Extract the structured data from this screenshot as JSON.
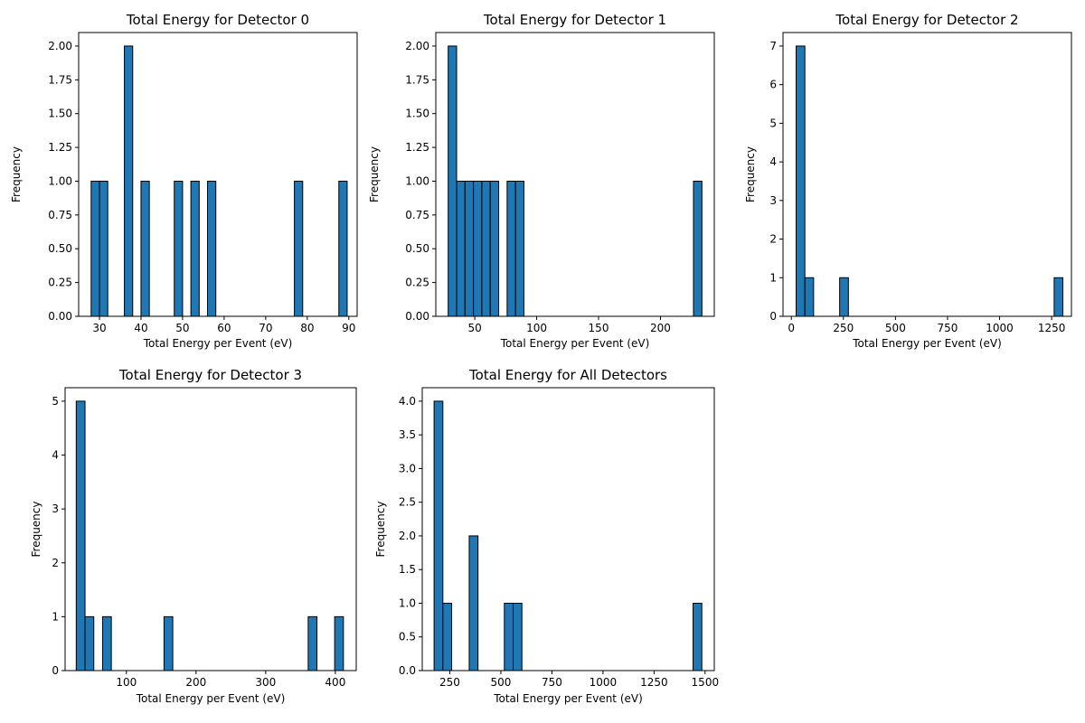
{
  "chart_data": [
    {
      "type": "bar",
      "title": "Total Energy for Detector 0",
      "xlabel": "Total Energy per Event (eV)",
      "ylabel": "Frequency",
      "xlim": [
        25.0,
        92.0
      ],
      "ylim": [
        0,
        2.1
      ],
      "xticks": [
        30,
        40,
        50,
        60,
        70,
        80,
        90
      ],
      "xtick_labels": [
        "30",
        "40",
        "50",
        "60",
        "70",
        "80",
        "90"
      ],
      "yticks": [
        0,
        0.25,
        0.5,
        0.75,
        1.0,
        1.25,
        1.5,
        1.75,
        2.0
      ],
      "ytick_labels": [
        "0.00",
        "0.25",
        "0.50",
        "0.75",
        "1.00",
        "1.25",
        "1.50",
        "1.75",
        "2.00"
      ],
      "bin_width": 2.0,
      "bars": [
        {
          "x0": 28.0,
          "count": 1
        },
        {
          "x0": 30.0,
          "count": 1
        },
        {
          "x0": 36.0,
          "count": 2
        },
        {
          "x0": 40.0,
          "count": 1
        },
        {
          "x0": 48.0,
          "count": 1
        },
        {
          "x0": 52.0,
          "count": 1
        },
        {
          "x0": 56.0,
          "count": 1
        },
        {
          "x0": 76.9,
          "count": 1
        },
        {
          "x0": 87.6,
          "count": 1
        }
      ],
      "bar_color": "#1f77b4",
      "edge_color": "#000000"
    },
    {
      "type": "bar",
      "title": "Total Energy for Detector 1",
      "xlabel": "Total Energy per Event (eV)",
      "ylabel": "Frequency",
      "xlim": [
        18.5,
        243.5
      ],
      "ylim": [
        0,
        2.1
      ],
      "xticks": [
        50,
        100,
        150,
        200
      ],
      "xtick_labels": [
        "50",
        "100",
        "150",
        "200"
      ],
      "yticks": [
        0,
        0.25,
        0.5,
        0.75,
        1.0,
        1.25,
        1.5,
        1.75,
        2.0
      ],
      "ytick_labels": [
        "0.00",
        "0.25",
        "0.50",
        "0.75",
        "1.00",
        "1.25",
        "1.50",
        "1.75",
        "2.00"
      ],
      "bin_width": 6.8,
      "bars": [
        {
          "x0": 28.5,
          "count": 2
        },
        {
          "x0": 35.3,
          "count": 1
        },
        {
          "x0": 42.1,
          "count": 1
        },
        {
          "x0": 48.9,
          "count": 1
        },
        {
          "x0": 55.7,
          "count": 1
        },
        {
          "x0": 62.5,
          "count": 1
        },
        {
          "x0": 76.1,
          "count": 1
        },
        {
          "x0": 82.9,
          "count": 1
        },
        {
          "x0": 226.7,
          "count": 1
        }
      ],
      "bar_color": "#1f77b4",
      "edge_color": "#000000"
    },
    {
      "type": "bar",
      "title": "Total Energy for Detector 2",
      "xlabel": "Total Energy per Event (eV)",
      "ylabel": "Frequency",
      "xlim": [
        -40,
        1345
      ],
      "ylim": [
        0,
        7.35
      ],
      "xticks": [
        0,
        250,
        500,
        750,
        1000,
        1250
      ],
      "xtick_labels": [
        "0",
        "250",
        "500",
        "750",
        "1000",
        "1250"
      ],
      "yticks": [
        0,
        1,
        2,
        3,
        4,
        5,
        6,
        7
      ],
      "ytick_labels": [
        "0",
        "1",
        "2",
        "3",
        "4",
        "5",
        "6",
        "7"
      ],
      "bin_width": 42.0,
      "bars": [
        {
          "x0": 23.0,
          "count": 7
        },
        {
          "x0": 65.0,
          "count": 1
        },
        {
          "x0": 232.0,
          "count": 1
        },
        {
          "x0": 1262.0,
          "count": 1
        }
      ],
      "bar_color": "#1f77b4",
      "edge_color": "#000000"
    },
    {
      "type": "bar",
      "title": "Total Energy for Detector 3",
      "xlabel": "Total Energy per Event (eV)",
      "ylabel": "Frequency",
      "xlim": [
        12.0,
        430.0
      ],
      "ylim": [
        0,
        5.25
      ],
      "xticks": [
        100,
        200,
        300,
        400
      ],
      "xtick_labels": [
        "100",
        "200",
        "300",
        "400"
      ],
      "yticks": [
        0,
        1,
        2,
        3,
        4,
        5
      ],
      "ytick_labels": [
        "0",
        "1",
        "2",
        "3",
        "4",
        "5"
      ],
      "bin_width": 12.6,
      "bars": [
        {
          "x0": 28.0,
          "count": 5
        },
        {
          "x0": 40.6,
          "count": 1
        },
        {
          "x0": 65.8,
          "count": 1
        },
        {
          "x0": 154.0,
          "count": 1
        },
        {
          "x0": 361.0,
          "count": 1
        },
        {
          "x0": 399.0,
          "count": 1
        }
      ],
      "bar_color": "#1f77b4",
      "edge_color": "#000000"
    },
    {
      "type": "bar",
      "title": "Total Energy for All Detectors",
      "xlabel": "Total Energy per Event (eV)",
      "ylabel": "Frequency",
      "xlim": [
        115,
        1545
      ],
      "ylim": [
        0,
        4.2
      ],
      "xticks": [
        250,
        500,
        750,
        1000,
        1250,
        1500
      ],
      "xtick_labels": [
        "250",
        "500",
        "750",
        "1000",
        "1250",
        "1500"
      ],
      "yticks": [
        0,
        0.5,
        1.0,
        1.5,
        2.0,
        2.5,
        3.0,
        3.5,
        4.0
      ],
      "ytick_labels": [
        "0.0",
        "0.5",
        "1.0",
        "1.5",
        "2.0",
        "2.5",
        "3.0",
        "3.5",
        "4.0"
      ],
      "bin_width": 43.0,
      "bars": [
        {
          "x0": 173.0,
          "count": 4
        },
        {
          "x0": 216.0,
          "count": 1
        },
        {
          "x0": 345.0,
          "count": 2
        },
        {
          "x0": 517.0,
          "count": 1
        },
        {
          "x0": 560.0,
          "count": 1
        },
        {
          "x0": 1441.0,
          "count": 1
        }
      ],
      "bar_color": "#1f77b4",
      "edge_color": "#000000"
    }
  ]
}
